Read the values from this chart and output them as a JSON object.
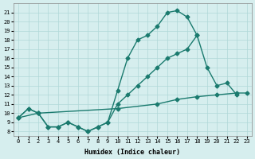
{
  "xlabel": "Humidex (Indice chaleur)",
  "xlim": [
    -0.5,
    23.5
  ],
  "ylim": [
    7.5,
    22
  ],
  "xticks": [
    0,
    1,
    2,
    3,
    4,
    5,
    6,
    7,
    8,
    9,
    10,
    11,
    12,
    13,
    14,
    15,
    16,
    17,
    18,
    19,
    20,
    21,
    22,
    23
  ],
  "yticks": [
    8,
    9,
    10,
    11,
    12,
    13,
    14,
    15,
    16,
    17,
    18,
    19,
    20,
    21
  ],
  "bg_color": "#d6eeee",
  "line_color": "#1a7a6e",
  "grid_color": "#b0d8d8",
  "line1_x": [
    0,
    1,
    2,
    3,
    4,
    5,
    6,
    7,
    8,
    9,
    10,
    11,
    12,
    13,
    14,
    15,
    16,
    17,
    18
  ],
  "line1_y": [
    9.5,
    10.5,
    10.0,
    8.5,
    8.5,
    9.0,
    8.5,
    8.0,
    8.5,
    9.0,
    12.5,
    16.0,
    18.0,
    18.5,
    19.5,
    21.0,
    21.2,
    20.5,
    18.5
  ],
  "line2_x": [
    0,
    1,
    2,
    3,
    4,
    5,
    6,
    7,
    8,
    9,
    10,
    11,
    12,
    13,
    14,
    15,
    16,
    17,
    18,
    19,
    20,
    21,
    22
  ],
  "line2_y": [
    9.5,
    10.5,
    10.0,
    8.5,
    8.5,
    9.0,
    8.5,
    8.0,
    8.5,
    9.0,
    11.0,
    12.0,
    13.0,
    14.0,
    15.0,
    16.0,
    16.5,
    17.0,
    18.5,
    15.0,
    13.0,
    13.3,
    12.0
  ],
  "line3_x": [
    0,
    2,
    10,
    14,
    16,
    18,
    20,
    22,
    23
  ],
  "line3_y": [
    9.5,
    10.0,
    10.5,
    11.0,
    11.5,
    11.8,
    12.0,
    12.2,
    12.2
  ]
}
